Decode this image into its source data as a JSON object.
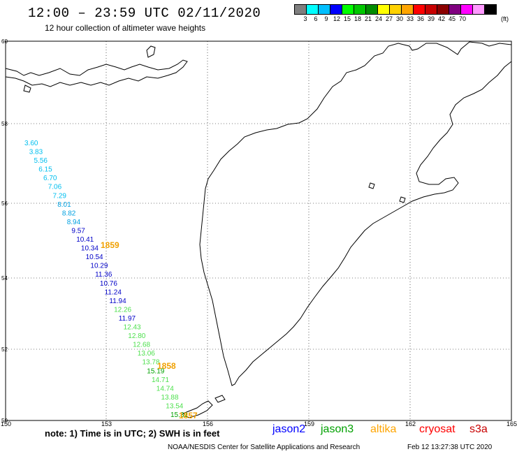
{
  "header": {
    "title": "12:00 – 23:59 UTC 02/11/2020",
    "subtitle": "12 hour collection of altimeter wave heights"
  },
  "colorbar": {
    "colors": [
      "#7f7f7f",
      "#00ffff",
      "#00bfff",
      "#0000ff",
      "#00ff00",
      "#00c800",
      "#008c00",
      "#ffff00",
      "#ffd200",
      "#ffa500",
      "#ff0000",
      "#c80000",
      "#8b0000",
      "#800080",
      "#ff00ff",
      "#ff99ff",
      "#000000"
    ],
    "labels": [
      "3",
      "6",
      "9",
      "12",
      "15",
      "18",
      "21",
      "24",
      "27",
      "30",
      "33",
      "36",
      "39",
      "42",
      "45",
      "70"
    ],
    "unit": "(ft)"
  },
  "map": {
    "lat_labels": [
      "60",
      "58",
      "56",
      "54",
      "52",
      "50"
    ],
    "lon_labels": [
      "150",
      "153",
      "156",
      "159",
      "162",
      "165"
    ]
  },
  "wave_heights": [
    {
      "value": "3.60",
      "color": "#00bfef"
    },
    {
      "value": "3.83",
      "color": "#00bfef"
    },
    {
      "value": "5.56",
      "color": "#00bfef"
    },
    {
      "value": "6.15",
      "color": "#00bfef"
    },
    {
      "value": "6.70",
      "color": "#00bfef"
    },
    {
      "value": "7.06",
      "color": "#00bfef"
    },
    {
      "value": "7.29",
      "color": "#00bfef"
    },
    {
      "value": "8.01",
      "color": "#00a0e0"
    },
    {
      "value": "8.82",
      "color": "#00a0e0"
    },
    {
      "value": "8.94",
      "color": "#00a0e0"
    },
    {
      "value": "9.57",
      "color": "#0000c8"
    },
    {
      "value": "10.41",
      "color": "#0000c8"
    },
    {
      "value": "10.34",
      "color": "#0000c8"
    },
    {
      "value": "10.54",
      "color": "#0000c8"
    },
    {
      "value": "10.29",
      "color": "#0000c8"
    },
    {
      "value": "11.36",
      "color": "#0000c8"
    },
    {
      "value": "10.76",
      "color": "#0000c8"
    },
    {
      "value": "11.24",
      "color": "#0000c8"
    },
    {
      "value": "11.94",
      "color": "#0000c8"
    },
    {
      "value": "12.26",
      "color": "#4ee04e"
    },
    {
      "value": "11.97",
      "color": "#0000c8"
    },
    {
      "value": "12.43",
      "color": "#4ee04e"
    },
    {
      "value": "12.80",
      "color": "#4ee04e"
    },
    {
      "value": "12.68",
      "color": "#4ee04e"
    },
    {
      "value": "13.06",
      "color": "#4ee04e"
    },
    {
      "value": "13.78",
      "color": "#4ee04e"
    },
    {
      "value": "15.19",
      "color": "#00a000"
    },
    {
      "value": "14.71",
      "color": "#4ee04e"
    },
    {
      "value": "14.74",
      "color": "#4ee04e"
    },
    {
      "value": "13.88",
      "color": "#4ee04e"
    },
    {
      "value": "13.54",
      "color": "#4ee04e"
    },
    {
      "value": "15.31",
      "color": "#00a000"
    }
  ],
  "time_marks": [
    {
      "label": "1859",
      "color": "#f0a000"
    },
    {
      "label": "1858",
      "color": "#f0a000"
    },
    {
      "label": "1857",
      "color": "#f0a000"
    }
  ],
  "footer": {
    "note": "note: 1) Time is in UTC; 2) SWH is in feet",
    "satellites": [
      {
        "name": "jason2",
        "color": "#0000ff"
      },
      {
        "name": "jason3",
        "color": "#00a000"
      },
      {
        "name": "altika",
        "color": "#ffa500"
      },
      {
        "name": "cryosat",
        "color": "#ff0000"
      },
      {
        "name": "s3a",
        "color": "#c80000"
      }
    ],
    "credit": "NOAA/NESDIS Center for Satellite Applications and Research",
    "timestamp": "Feb 12 13:27:38 UTC 2020"
  }
}
